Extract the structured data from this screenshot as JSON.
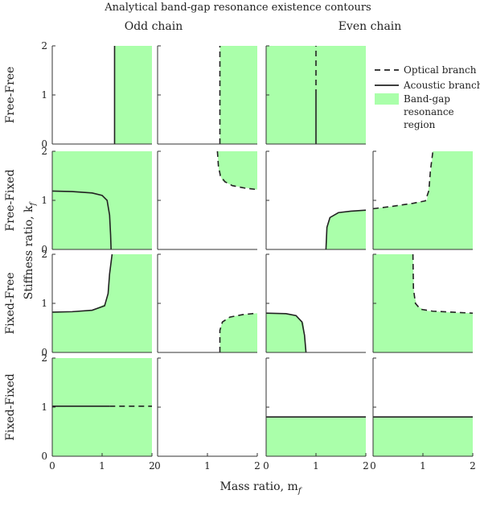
{
  "title": "Analytical band-gap resonance existence contours",
  "column_headers": [
    "Odd chain",
    "Even chain"
  ],
  "row_labels": [
    "Free-Free",
    "Free-Fixed",
    "Fixed-Free",
    "Fixed-Fixed"
  ],
  "ylabel": "Stiffness ratio, k",
  "ylabel_sub": "f",
  "xlabel": "Mass ratio, m",
  "xlabel_sub": "f",
  "legend": {
    "optical": "Optical branch",
    "acoustic": "Acoustic branch",
    "region_lines": [
      "Band-gap",
      "resonance",
      "region"
    ]
  },
  "colors": {
    "region": "#aaffaa",
    "curve": "#222222",
    "axis": "#333333"
  },
  "chart_data": {
    "type": "area",
    "grid": false,
    "xlim": [
      0,
      2
    ],
    "ylim": [
      0,
      2
    ],
    "xticks": [
      0,
      1,
      2
    ],
    "yticks": [
      0,
      1,
      2
    ],
    "panels": [
      {
        "row": 0,
        "col": 0,
        "regions": [
          [
            [
              1.25,
              0
            ],
            [
              2,
              0
            ],
            [
              2,
              2
            ],
            [
              1.25,
              2
            ]
          ]
        ],
        "curves": [
          {
            "branch": "acoustic",
            "points": [
              [
                1.25,
                0
              ],
              [
                1.25,
                2
              ]
            ]
          }
        ]
      },
      {
        "row": 0,
        "col": 1,
        "regions": [
          [
            [
              1.25,
              0
            ],
            [
              2,
              0
            ],
            [
              2,
              2
            ],
            [
              1.25,
              2
            ]
          ]
        ],
        "curves": [
          {
            "branch": "optical",
            "points": [
              [
                1.25,
                0
              ],
              [
                1.25,
                2
              ]
            ]
          }
        ]
      },
      {
        "row": 0,
        "col": 2,
        "regions": [
          [
            [
              0,
              0
            ],
            [
              2,
              0
            ],
            [
              2,
              2
            ],
            [
              0,
              2
            ]
          ]
        ],
        "curves": [
          {
            "branch": "acoustic",
            "points": [
              [
                1,
                0
              ],
              [
                1,
                1
              ]
            ]
          },
          {
            "branch": "optical",
            "points": [
              [
                1,
                1
              ],
              [
                1,
                2
              ]
            ]
          }
        ]
      },
      {
        "row": 1,
        "col": 0,
        "regions": [
          [
            [
              0,
              0
            ],
            [
              2,
              0
            ],
            [
              2,
              2
            ],
            [
              0,
              2
            ]
          ]
        ],
        "curves": [
          {
            "branch": "acoustic",
            "points": [
              [
                0,
                1.19
              ],
              [
                0.4,
                1.18
              ],
              [
                0.8,
                1.15
              ],
              [
                1.0,
                1.1
              ],
              [
                1.1,
                1.0
              ],
              [
                1.15,
                0.7
              ],
              [
                1.17,
                0.3
              ],
              [
                1.18,
                0
              ]
            ]
          }
        ]
      },
      {
        "row": 1,
        "col": 1,
        "regions": [
          [
            [
              1.2,
              2
            ],
            [
              1.23,
              1.6
            ],
            [
              1.3,
              1.4
            ],
            [
              1.5,
              1.3
            ],
            [
              2,
              1.22
            ],
            [
              2,
              2
            ]
          ]
        ],
        "curves": [
          {
            "branch": "optical",
            "points": [
              [
                1.2,
                2
              ],
              [
                1.22,
                1.7
              ],
              [
                1.26,
                1.5
              ],
              [
                1.35,
                1.38
              ],
              [
                1.5,
                1.3
              ],
              [
                1.75,
                1.25
              ],
              [
                2,
                1.22
              ]
            ]
          }
        ]
      },
      {
        "row": 1,
        "col": 2,
        "regions": [
          [
            [
              1.2,
              0
            ],
            [
              1.22,
              0.45
            ],
            [
              1.28,
              0.65
            ],
            [
              1.45,
              0.75
            ],
            [
              1.7,
              0.78
            ],
            [
              2,
              0.8
            ],
            [
              2,
              0
            ]
          ]
        ],
        "curves": [
          {
            "branch": "acoustic",
            "points": [
              [
                1.2,
                0
              ],
              [
                1.22,
                0.45
              ],
              [
                1.28,
                0.65
              ],
              [
                1.45,
                0.75
              ],
              [
                1.7,
                0.78
              ],
              [
                2,
                0.8
              ]
            ]
          }
        ]
      },
      {
        "row": 1,
        "col": 3,
        "regions": [
          [
            [
              0,
              0
            ],
            [
              2,
              0
            ],
            [
              2,
              2
            ],
            [
              1.2,
              2
            ],
            [
              1.15,
              1.5
            ],
            [
              1.08,
              1.0
            ],
            [
              0.8,
              0.94
            ],
            [
              0.4,
              0.88
            ],
            [
              0,
              0.83
            ]
          ]
        ],
        "curves": [
          {
            "branch": "optical",
            "points": [
              [
                0,
                0.83
              ],
              [
                0.4,
                0.88
              ],
              [
                0.8,
                0.94
              ],
              [
                1.05,
                0.99
              ],
              [
                1.12,
                1.2
              ],
              [
                1.15,
                1.6
              ],
              [
                1.2,
                2
              ]
            ]
          }
        ]
      },
      {
        "row": 2,
        "col": 0,
        "regions": [
          [
            [
              0,
              0
            ],
            [
              2,
              0
            ],
            [
              2,
              2
            ],
            [
              1.2,
              2
            ],
            [
              1.15,
              1.5
            ],
            [
              1.08,
              1.0
            ],
            [
              0.8,
              0.86
            ],
            [
              0.4,
              0.83
            ],
            [
              0,
              0.82
            ]
          ]
        ],
        "curves": [
          {
            "branch": "acoustic",
            "points": [
              [
                0,
                0.82
              ],
              [
                0.4,
                0.83
              ],
              [
                0.8,
                0.86
              ],
              [
                1.05,
                0.95
              ],
              [
                1.12,
                1.2
              ],
              [
                1.15,
                1.6
              ],
              [
                1.2,
                2
              ]
            ]
          }
        ]
      },
      {
        "row": 2,
        "col": 1,
        "regions": [
          [
            [
              1.25,
              0
            ],
            [
              1.25,
              0.45
            ],
            [
              1.3,
              0.62
            ],
            [
              1.45,
              0.72
            ],
            [
              1.7,
              0.77
            ],
            [
              2,
              0.8
            ],
            [
              2,
              0
            ]
          ]
        ],
        "curves": [
          {
            "branch": "optical",
            "points": [
              [
                1.25,
                0
              ],
              [
                1.25,
                0.45
              ],
              [
                1.3,
                0.62
              ],
              [
                1.45,
                0.72
              ],
              [
                1.7,
                0.77
              ],
              [
                2,
                0.8
              ]
            ]
          }
        ]
      },
      {
        "row": 2,
        "col": 2,
        "regions": [
          [
            [
              0,
              0
            ],
            [
              0,
              0.8
            ],
            [
              0.4,
              0.79
            ],
            [
              0.6,
              0.75
            ],
            [
              0.75,
              0.6
            ],
            [
              0.78,
              0.3
            ],
            [
              0.8,
              0
            ]
          ]
        ],
        "curves": [
          {
            "branch": "acoustic",
            "points": [
              [
                0,
                0.8
              ],
              [
                0.4,
                0.79
              ],
              [
                0.6,
                0.75
              ],
              [
                0.72,
                0.62
              ],
              [
                0.77,
                0.35
              ],
              [
                0.8,
                0
              ]
            ]
          }
        ]
      },
      {
        "row": 2,
        "col": 3,
        "regions": [
          [
            [
              0,
              0
            ],
            [
              2,
              0
            ],
            [
              2,
              0.8
            ],
            [
              1.5,
              0.82
            ],
            [
              1.05,
              0.85
            ],
            [
              0.88,
              0.95
            ],
            [
              0.82,
              1.2
            ],
            [
              0.8,
              2
            ],
            [
              0,
              2
            ]
          ]
        ],
        "curves": [
          {
            "branch": "optical",
            "points": [
              [
                0.8,
                2
              ],
              [
                0.81,
                1.3
              ],
              [
                0.85,
                1.0
              ],
              [
                0.95,
                0.88
              ],
              [
                1.2,
                0.84
              ],
              [
                1.6,
                0.82
              ],
              [
                2,
                0.8
              ]
            ]
          }
        ]
      },
      {
        "row": 3,
        "col": 0,
        "regions": [
          [
            [
              0,
              0
            ],
            [
              2,
              0
            ],
            [
              2,
              2
            ],
            [
              0,
              2
            ]
          ]
        ],
        "curves": [
          {
            "branch": "acoustic",
            "points": [
              [
                0,
                1.02
              ],
              [
                1.15,
                1.02
              ]
            ]
          },
          {
            "branch": "optical",
            "points": [
              [
                1.15,
                1.02
              ],
              [
                2,
                1.02
              ]
            ]
          }
        ]
      },
      {
        "row": 3,
        "col": 1,
        "regions": [],
        "curves": []
      },
      {
        "row": 3,
        "col": 2,
        "regions": [
          [
            [
              0,
              0
            ],
            [
              2,
              0
            ],
            [
              2,
              0.8
            ],
            [
              0,
              0.8
            ]
          ]
        ],
        "curves": [
          {
            "branch": "acoustic",
            "points": [
              [
                0,
                0.8
              ],
              [
                2,
                0.8
              ]
            ]
          }
        ]
      },
      {
        "row": 3,
        "col": 3,
        "regions": [
          [
            [
              0,
              0
            ],
            [
              2,
              0
            ],
            [
              2,
              0.8
            ],
            [
              0,
              0.8
            ]
          ]
        ],
        "curves": [
          {
            "branch": "acoustic",
            "points": [
              [
                0,
                0.8
              ],
              [
                2,
                0.8
              ]
            ]
          }
        ]
      }
    ]
  }
}
